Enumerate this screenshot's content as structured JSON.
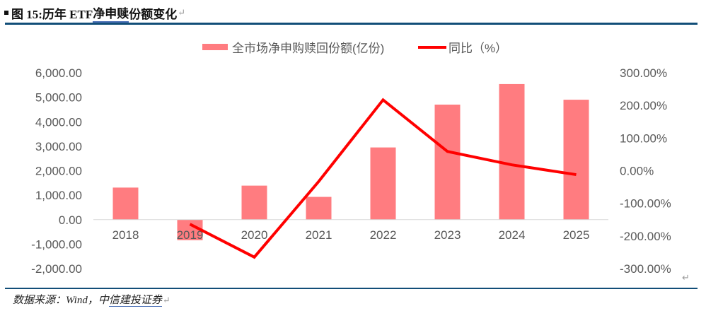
{
  "header": {
    "bullet": "■",
    "title_prefix": "图 15:历年 ETF ",
    "title_underlined": "净申赎",
    "title_suffix": "份额变化",
    "return_mark": "↵"
  },
  "footer": {
    "source_prefix": "数据来源：Wind，中",
    "source_underlined": "信建投证券",
    "return_mark": "↵"
  },
  "colors": {
    "bar": "#ff7c80",
    "line": "#ff0000",
    "rule": "#124e78",
    "axis_text": "#595959",
    "zero_line": "#d9d9d9"
  },
  "chart_data": {
    "type": "bar+line",
    "title": "历年 ETF 净申赎份额变化",
    "categories": [
      "2018",
      "2019",
      "2020",
      "2021",
      "2022",
      "2023",
      "2024",
      "2025"
    ],
    "series": [
      {
        "name": "全市场净申购赎回份额(亿份)",
        "type": "bar",
        "axis": "left",
        "values": [
          1310,
          -840,
          1390,
          930,
          2950,
          4700,
          5540,
          4900
        ]
      },
      {
        "name": "同比（%）",
        "type": "line",
        "axis": "right",
        "values": [
          null,
          -164,
          -265,
          -33,
          217,
          59,
          18,
          -12
        ]
      }
    ],
    "left_axis": {
      "ylim": [
        -2000,
        6000
      ],
      "ticks": [
        "6,000.00",
        "5,000.00",
        "4,000.00",
        "3,000.00",
        "2,000.00",
        "1,000.00",
        "0.00",
        "-1,000.00",
        "-2,000.00"
      ]
    },
    "right_axis": {
      "ylim": [
        -300,
        300
      ],
      "unit": "%",
      "ticks": [
        "300.00%",
        "200.00%",
        "100.00%",
        "0.00%",
        "-100.00%",
        "-200.00%",
        "-300.00%"
      ]
    },
    "legend": {
      "position": "top",
      "entries": [
        "全市场净申购赎回份额(亿份)",
        "同比（%）"
      ]
    },
    "grid": false,
    "xlabel": "",
    "ylabel": ""
  }
}
